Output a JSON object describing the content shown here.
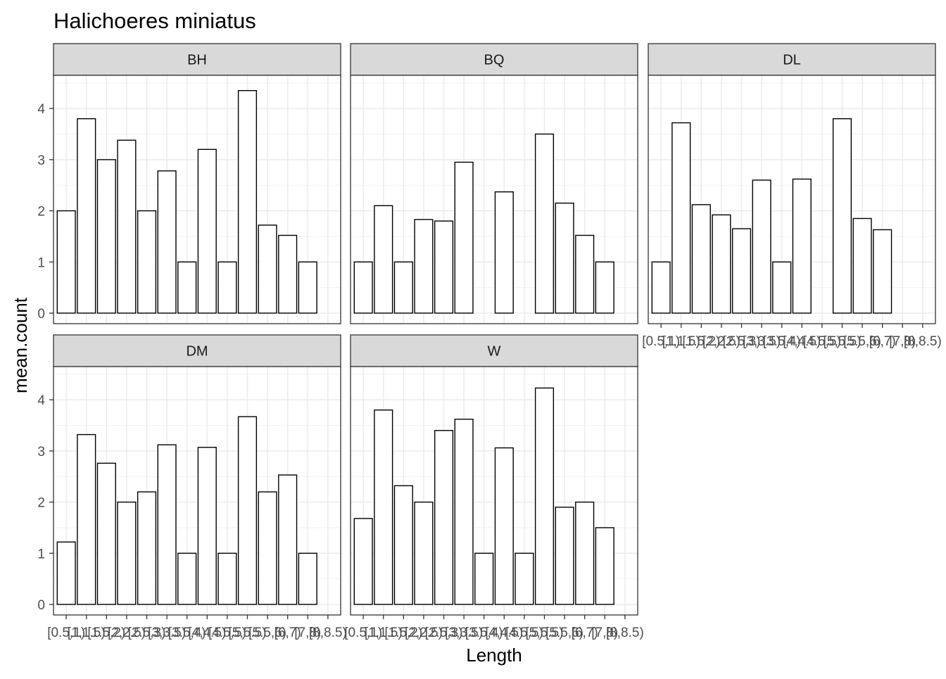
{
  "chart_data": {
    "type": "bar",
    "title": "Halichoeres miniatus",
    "xlabel": "Length",
    "ylabel": "mean.count",
    "ylim": [
      0,
      4.5
    ],
    "yticks": [
      0,
      1,
      2,
      3,
      4
    ],
    "grid": true,
    "categories": [
      "[0.5,1)",
      "[1,1.5)",
      "[1.5,2)",
      "[2,2.5)",
      "[2.5,3)",
      "[3,3.5)",
      "[3.5,4)",
      "[4,4.5)",
      "[4.5,5)",
      "[5,5.5)",
      "[5.5,6)",
      "[6,7)",
      "[7,8)",
      "[8,8.5)"
    ],
    "panels": [
      {
        "name": "BH",
        "values": [
          2.0,
          3.8,
          3.0,
          3.38,
          2.0,
          2.78,
          1.0,
          3.2,
          1.0,
          4.35,
          1.72,
          1.52,
          1.0,
          null
        ]
      },
      {
        "name": "BQ",
        "values": [
          1.0,
          2.1,
          1.0,
          1.83,
          1.8,
          2.95,
          null,
          2.37,
          null,
          3.5,
          2.15,
          1.52,
          1.0,
          null
        ]
      },
      {
        "name": "DL",
        "values": [
          1.0,
          3.72,
          2.12,
          1.92,
          1.65,
          2.6,
          1.0,
          2.62,
          null,
          3.8,
          1.85,
          1.63,
          null,
          null
        ]
      },
      {
        "name": "DM",
        "values": [
          1.22,
          3.32,
          2.76,
          2.0,
          2.2,
          3.12,
          1.0,
          3.07,
          1.0,
          3.67,
          2.2,
          2.53,
          1.0,
          null
        ]
      },
      {
        "name": "W",
        "values": [
          1.68,
          3.8,
          2.32,
          2.0,
          3.4,
          3.62,
          1.0,
          3.06,
          1.0,
          4.23,
          1.9,
          2.0,
          1.5,
          null
        ]
      }
    ]
  }
}
